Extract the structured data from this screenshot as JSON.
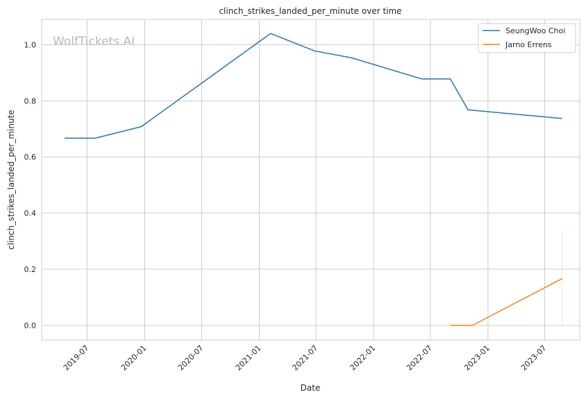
{
  "watermark": "WolfTickets.AI",
  "chart_data": {
    "type": "line",
    "title": "clinch_strikes_landed_per_minute over time",
    "xlabel": "Date",
    "ylabel": "clinch_strikes_landed_per_minute",
    "xlim": [
      "2019-02-06",
      "2023-10-21"
    ],
    "ylim": [
      -0.052,
      1.09
    ],
    "x_ticks": [
      "2019-07",
      "2020-01",
      "2020-07",
      "2021-01",
      "2021-07",
      "2022-01",
      "2022-07",
      "2023-01",
      "2023-07"
    ],
    "y_ticks": [
      "0.0",
      "0.2",
      "0.4",
      "0.6",
      "0.8",
      "1.0"
    ],
    "grid": true,
    "legend_position": "top-right",
    "series": [
      {
        "name": "SeungWoo Choi",
        "color": "#1f77b4",
        "points": [
          {
            "x": "2019-04-20",
            "y": 0.667
          },
          {
            "x": "2019-07-27",
            "y": 0.667
          },
          {
            "x": "2019-12-21",
            "y": 0.708
          },
          {
            "x": "2021-02-06",
            "y": 1.04
          },
          {
            "x": "2021-06-26",
            "y": 0.978
          },
          {
            "x": "2021-10-23",
            "y": 0.953
          },
          {
            "x": "2022-06-04",
            "y": 0.878
          },
          {
            "x": "2022-09-03",
            "y": 0.878
          },
          {
            "x": "2022-10-29",
            "y": 0.768
          },
          {
            "x": "2023-08-26",
            "y": 0.737
          }
        ]
      },
      {
        "name": "Jarno Errens",
        "color": "#ff7f0e",
        "points": [
          {
            "x": "2022-09-03",
            "y": 0.0
          },
          {
            "x": "2022-11-12",
            "y": 0.0
          },
          {
            "x": "2023-08-26",
            "y": 0.167
          }
        ]
      }
    ]
  }
}
